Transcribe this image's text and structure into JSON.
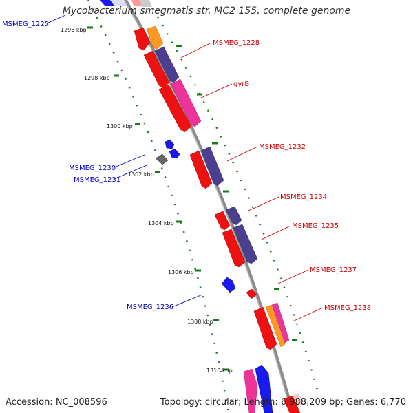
{
  "title": "Mycobacterium smegmatis str. MC2 155, complete genome",
  "footer": {
    "accession": "Accession: NC_008596",
    "summary": "Topology: circular; Length: 6,988,209 bp; Genes: 6,770"
  },
  "colors": {
    "backbone": "#8a8a8a",
    "forward_label": "#cc0000",
    "reverse_label": "#0000cc",
    "tick_dots": "#1a7a1a",
    "gene_red": "#ee1111",
    "gene_purple": "#4b3f8f",
    "gene_magenta": "#ee3399",
    "gene_orange": "#ff9922",
    "gene_blue": "#1a1aee",
    "gene_gray": "#666666"
  },
  "ticks": [
    "1296 kbp",
    "1298 kbp",
    "1300 kbp",
    "1302 kbp",
    "1304 kbp",
    "1306 kbp",
    "1308 kbp",
    "1310 kbp"
  ],
  "gene_labels": [
    {
      "id": "MSMEG_1225",
      "strand": "reverse"
    },
    {
      "id": "MSMEG_1228",
      "strand": "forward"
    },
    {
      "id": "gyrB",
      "strand": "forward"
    },
    {
      "id": "MSMEG_1232",
      "strand": "forward"
    },
    {
      "id": "MSMEG_1230",
      "strand": "reverse"
    },
    {
      "id": "MSMEG_1231",
      "strand": "reverse"
    },
    {
      "id": "MSMEG_1234",
      "strand": "forward"
    },
    {
      "id": "MSMEG_1235",
      "strand": "forward"
    },
    {
      "id": "MSMEG_1237",
      "strand": "forward"
    },
    {
      "id": "MSMEG_1236",
      "strand": "reverse"
    },
    {
      "id": "MSMEG_1238",
      "strand": "forward"
    }
  ]
}
